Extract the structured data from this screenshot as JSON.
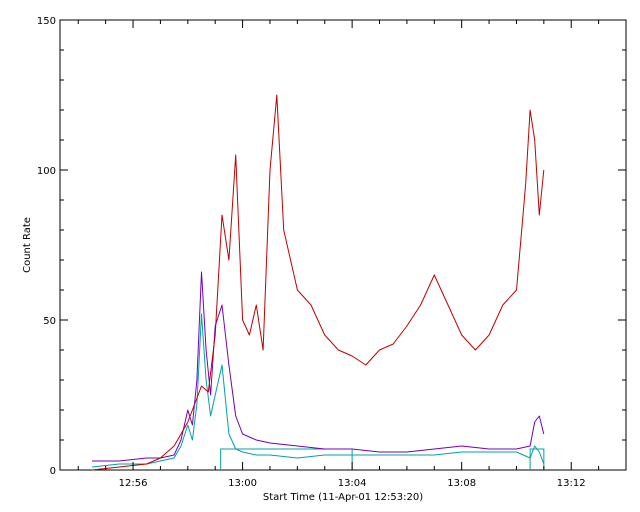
{
  "chart_data": {
    "type": "line",
    "title": "",
    "xlabel": "Start Time (11-Apr-01 12:53:20)",
    "ylabel": "Count Rate",
    "x_unit": "clock time (minutes)",
    "xlim": [
      "12:53:20",
      "13:14:00"
    ],
    "ylim": [
      0,
      150
    ],
    "grid": false,
    "legend": "none",
    "x_ticks": [
      {
        "value": "12:56",
        "label": "12:56"
      },
      {
        "value": "13:00",
        "label": "13:00"
      },
      {
        "value": "13:04",
        "label": "13:04"
      },
      {
        "value": "13:08",
        "label": "13:08"
      },
      {
        "value": "13:12",
        "label": "13:12"
      }
    ],
    "x_minor_ticks": [
      "12:54",
      "12:55",
      "12:57",
      "12:58",
      "12:59",
      "13:01",
      "13:02",
      "13:03",
      "13:05",
      "13:06",
      "13:07",
      "13:09",
      "13:10",
      "13:11",
      "13:13"
    ],
    "y_ticks": [
      0,
      50,
      100,
      150
    ],
    "y_minor_step": 10,
    "series": [
      {
        "color": "#00a0a8",
        "x": [
          "12:54:30",
          "12:55:30",
          "12:56:30",
          "12:57:00",
          "12:57:30",
          "12:57:45",
          "12:58:00",
          "12:58:10",
          "12:58:20",
          "12:58:30",
          "12:58:40",
          "12:58:50",
          "12:59:00",
          "12:59:15",
          "12:59:30",
          "12:59:45",
          "13:00:00",
          "13:00:30",
          "13:01:00",
          "13:02:00",
          "13:03:00",
          "13:04:00",
          "13:05:00",
          "13:06:00",
          "13:07:00",
          "13:08:00",
          "13:09:00",
          "13:10:00",
          "13:10:30",
          "13:10:40",
          "13:10:50",
          "13:11:00"
        ],
        "values": [
          1,
          2,
          2,
          3,
          4,
          8,
          15,
          10,
          22,
          52,
          30,
          18,
          25,
          35,
          12,
          7,
          6,
          5,
          5,
          4,
          5,
          5,
          5,
          5,
          5,
          6,
          6,
          6,
          4,
          8,
          6,
          2
        ]
      },
      {
        "color": "#7000c0",
        "x": [
          "12:54:30",
          "12:55:30",
          "12:56:30",
          "12:57:00",
          "12:57:30",
          "12:57:45",
          "12:58:00",
          "12:58:10",
          "12:58:20",
          "12:58:30",
          "12:58:40",
          "12:58:50",
          "12:59:00",
          "12:59:15",
          "12:59:30",
          "12:59:45",
          "13:00:00",
          "13:00:30",
          "13:01:00",
          "13:02:00",
          "13:03:00",
          "13:04:00",
          "13:05:00",
          "13:06:00",
          "13:07:00",
          "13:08:00",
          "13:09:00",
          "13:10:00",
          "13:10:30",
          "13:10:40",
          "13:10:50",
          "13:11:00"
        ],
        "values": [
          3,
          3,
          4,
          4,
          5,
          10,
          20,
          15,
          30,
          66,
          40,
          25,
          48,
          55,
          35,
          18,
          12,
          10,
          9,
          8,
          7,
          7,
          6,
          6,
          7,
          8,
          7,
          7,
          8,
          16,
          18,
          12
        ]
      },
      {
        "color": "#c00000",
        "x": [
          "12:54:30",
          "12:55:30",
          "12:56:30",
          "12:57:00",
          "12:57:30",
          "12:57:45",
          "12:58:00",
          "12:58:15",
          "12:58:30",
          "12:58:45",
          "12:59:00",
          "12:59:15",
          "12:59:30",
          "12:59:45",
          "13:00:00",
          "13:00:15",
          "13:00:30",
          "13:00:45",
          "13:01:00",
          "13:01:15",
          "13:01:30",
          "13:02:00",
          "13:02:30",
          "13:03:00",
          "13:03:30",
          "13:04:00",
          "13:04:30",
          "13:05:00",
          "13:05:30",
          "13:06:00",
          "13:06:30",
          "13:07:00",
          "13:07:30",
          "13:08:00",
          "13:08:30",
          "13:09:00",
          "13:09:30",
          "13:10:00",
          "13:10:20",
          "13:10:30",
          "13:10:40",
          "13:10:50",
          "13:11:00"
        ],
        "values": [
          0,
          1,
          2,
          4,
          8,
          12,
          16,
          22,
          28,
          26,
          45,
          85,
          70,
          105,
          50,
          45,
          55,
          40,
          100,
          125,
          80,
          60,
          55,
          45,
          40,
          38,
          35,
          40,
          42,
          48,
          55,
          65,
          55,
          45,
          40,
          45,
          55,
          60,
          95,
          120,
          110,
          85,
          100
        ]
      }
    ],
    "overlay_boxes": [
      {
        "color": "#00a0a8",
        "x_start": "12:59:12",
        "x_end": "13:04:00",
        "y_top": 7
      },
      {
        "color": "#00a0a8",
        "x_start": "13:10:30",
        "x_end": "13:11:00",
        "y_top": 7
      }
    ]
  }
}
